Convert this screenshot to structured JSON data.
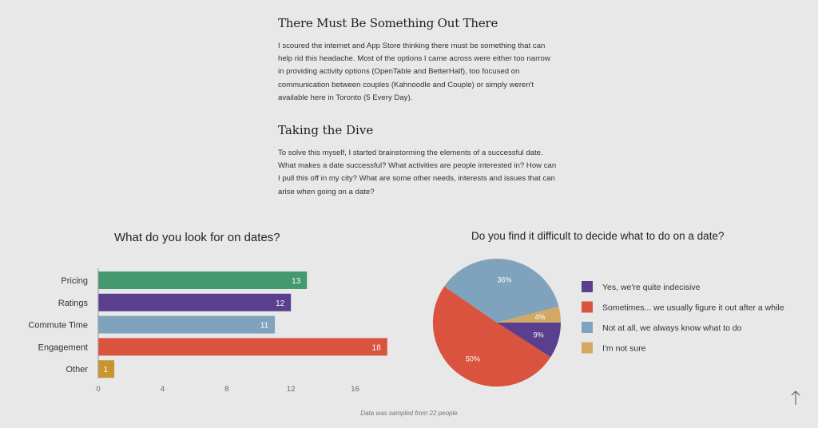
{
  "article": {
    "section1": {
      "heading": "There Must Be Something Out There",
      "body": "I scoured the internet and App Store thinking there must be something that can help rid this headache. Most of the options I came across were either too narrow in providing activity options (OpenTable and BetterHalf), too focused on communication between couples (Kahnoodle and Couple) or simply weren't available here in Toronto (5 Every Day)."
    },
    "section2": {
      "heading": "Taking the Dive",
      "body": "To solve this myself, I started brainstorming the elements of a successful date. What makes a date successful? What activities are people interested in? How can I pull this off in my city? What are some other needs, interests and issues that can arise when going on a date?"
    }
  },
  "footnote": "Data was sampled from 22 people",
  "icons": {
    "scroll_top": "arrow-up-icon"
  },
  "chart_data": [
    {
      "type": "bar",
      "orientation": "horizontal",
      "title": "What do you look for on dates?",
      "categories": [
        "Pricing",
        "Ratings",
        "Commute Time",
        "Engagement",
        "Other"
      ],
      "values": [
        13,
        12,
        11,
        18,
        1
      ],
      "colors": [
        "#45996f",
        "#5a3f8e",
        "#7fa3bc",
        "#d9533e",
        "#c99532"
      ],
      "xticks": [
        0,
        4,
        8,
        12,
        16
      ],
      "xlim": [
        0,
        20
      ],
      "grid": false,
      "legend": "none"
    },
    {
      "type": "pie",
      "title": "Do you find it difficult to decide what to do on a date?",
      "labels": [
        "Yes, we're quite indecisive",
        "Sometimes... we usually figure it out after a while",
        "Not at all, we always know what to do",
        "I'm not sure"
      ],
      "values": [
        9,
        50,
        36,
        4
      ],
      "value_labels": [
        "9%",
        "50%",
        "36%",
        "4%"
      ],
      "colors": [
        "#5a3f8e",
        "#d9533e",
        "#7fa3bc",
        "#d3a864"
      ],
      "legend": "right"
    }
  ]
}
